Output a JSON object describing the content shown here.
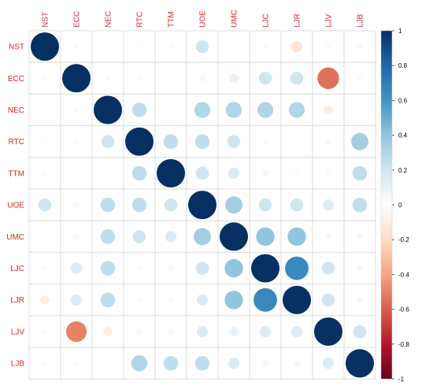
{
  "chart_data": {
    "type": "heatmap",
    "variables": [
      "NST",
      "ECC",
      "NEC",
      "RTC",
      "TTM",
      "UOE",
      "UMC",
      "LJC",
      "LJR",
      "LJV",
      "LJB"
    ],
    "matrix": [
      [
        1.0,
        0.03,
        0.0,
        0.02,
        0.03,
        0.2,
        0.0,
        0.03,
        -0.15,
        0.03,
        0.05
      ],
      [
        0.03,
        1.0,
        0.03,
        0.03,
        0.0,
        0.05,
        0.1,
        0.2,
        0.2,
        -0.55,
        0.03
      ],
      [
        0.0,
        0.03,
        1.0,
        0.25,
        0.0,
        0.3,
        0.3,
        0.3,
        0.3,
        -0.1,
        0.0
      ],
      [
        0.02,
        0.03,
        0.2,
        1.0,
        0.25,
        0.25,
        0.2,
        0.03,
        0.0,
        -0.05,
        0.35
      ],
      [
        0.03,
        0.0,
        0.0,
        0.25,
        1.0,
        0.2,
        0.15,
        0.05,
        0.03,
        0.03,
        0.25
      ],
      [
        0.2,
        0.05,
        0.25,
        0.25,
        0.2,
        1.0,
        0.35,
        0.2,
        0.2,
        0.15,
        0.25
      ],
      [
        0.0,
        0.05,
        0.25,
        0.2,
        0.15,
        0.35,
        1.0,
        0.4,
        0.4,
        0.05,
        0.05
      ],
      [
        0.03,
        0.15,
        0.25,
        0.03,
        0.05,
        0.2,
        0.4,
        1.0,
        0.65,
        0.2,
        0.05
      ],
      [
        -0.1,
        0.15,
        0.25,
        0.03,
        0.03,
        0.15,
        0.4,
        0.65,
        1.0,
        0.2,
        0.05
      ],
      [
        0.03,
        -0.5,
        -0.1,
        -0.05,
        0.05,
        0.15,
        0.1,
        0.15,
        0.15,
        1.0,
        0.2
      ],
      [
        -0.03,
        0.03,
        0.0,
        0.3,
        0.25,
        0.25,
        0.15,
        0.05,
        0.05,
        0.15,
        1.0
      ]
    ],
    "colorbar": {
      "range": [
        -1,
        1
      ],
      "ticks": [
        "1",
        "0.8",
        "0.6",
        "0.4",
        "0.2",
        "0",
        "-0.2",
        "-0.4",
        "-0.6",
        "-0.8",
        "-1"
      ],
      "tick_values": [
        1,
        0.8,
        0.6,
        0.4,
        0.2,
        0,
        -0.2,
        -0.4,
        -0.6,
        -0.8,
        -1
      ],
      "colors": [
        "#67001F",
        "#B2182B",
        "#D6604D",
        "#F4A582",
        "#FDDBC7",
        "#FFFFFF",
        "#D1E5F0",
        "#92C5DE",
        "#4393C3",
        "#2166AC",
        "#053061"
      ]
    },
    "label_color": "#D62728",
    "grid": true
  }
}
